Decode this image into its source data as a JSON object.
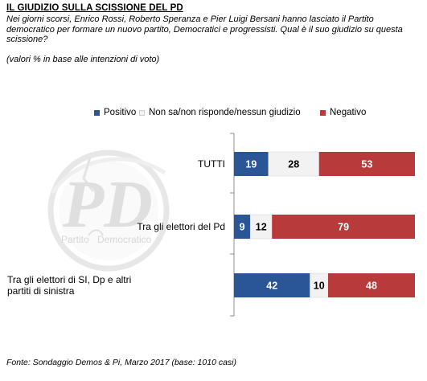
{
  "header": {
    "title": "IL GIUDIZIO SULLA SCISSIONE DEL PD",
    "question": "Nei giorni scorsi, Enrico Rossi, Roberto Speranza e Pier Luigi Bersani hanno lasciato il Partito democratico per formare un nuovo partito, Democratici e progressisti. Qual è il suo giudizio su questa scissione?",
    "note": "(valori % in base alle intenzioni di voto)"
  },
  "logo": {
    "text": "PD",
    "caption_a": "Partito",
    "caption_b": "Democratico",
    "color": "#b9b9b9"
  },
  "colors": {
    "positivo": "#2a5597",
    "neutro": "#f2f2f2",
    "negativo": "#b83a3b"
  },
  "chart_data": {
    "type": "bar",
    "orientation": "horizontal",
    "stacked": true,
    "categories": [
      "TUTTI",
      "Tra gli elettori del Pd",
      "Tra gli elettori di SI, Dp e altri partiti di sinistra"
    ],
    "series": [
      {
        "name": "Positivo",
        "values": [
          19,
          9,
          42
        ]
      },
      {
        "name": "Non sa/non risponde/nessun giudizio",
        "values": [
          28,
          12,
          10
        ]
      },
      {
        "name": "Negativo",
        "values": [
          53,
          79,
          48
        ]
      }
    ],
    "xlim": [
      0,
      100
    ],
    "legend": "top",
    "grid": false
  },
  "source": "Fonte: Sondaggio Demos & Pi, Marzo 2017 (base: 1010 casi)"
}
